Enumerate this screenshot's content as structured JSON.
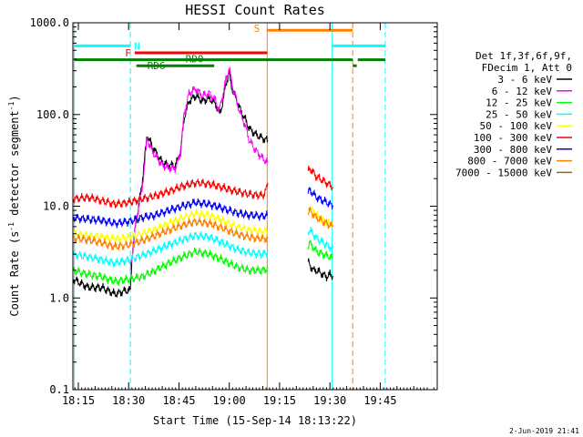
{
  "chart_data": {
    "type": "line",
    "title": "HESSI Count Rates",
    "xlabel": "Start Time (15-Sep-14 18:13:22)",
    "ylabel_parts": [
      "Count Rate (s",
      "-1",
      " detector segment",
      "-1",
      ")"
    ],
    "y_scale": "log",
    "xlim_minutes": [
      13.37,
      122.0
    ],
    "ylim": [
      0.1,
      1000
    ],
    "x_ticks": [
      {
        "minute": 15,
        "label": "18:15"
      },
      {
        "minute": 30,
        "label": "18:30"
      },
      {
        "minute": 45,
        "label": "18:45"
      },
      {
        "minute": 60,
        "label": "19:00"
      },
      {
        "minute": 75,
        "label": "19:15"
      },
      {
        "minute": 90,
        "label": "19:30"
      },
      {
        "minute": 105,
        "label": "19:45"
      }
    ],
    "y_ticks": [
      {
        "value": 0.1,
        "label": "0.1"
      },
      {
        "value": 1,
        "label": "1.0"
      },
      {
        "value": 10,
        "label": "10.0"
      },
      {
        "value": 100,
        "label": "100.0"
      },
      {
        "value": 1000,
        "label": "1000.0"
      }
    ],
    "legend": {
      "header": [
        "Det 1f,3f,6f,9f,",
        "FDecim 1, Att 0"
      ],
      "placement": "right"
    },
    "series": [
      {
        "name": "3 - 6 keV",
        "color": "#000000",
        "segments": [
          {
            "x": [
              13.5,
              18,
              22,
              26,
              29,
              30.5,
              31,
              32,
              33,
              34,
              35.5,
              37,
              40,
              42,
              44,
              45.5,
              46.5,
              48,
              50,
              52,
              54,
              56,
              57,
              58,
              59,
              60,
              61,
              62,
              63,
              64,
              65,
              66,
              68,
              70,
              71.5
            ],
            "y": [
              1.6,
              1.3,
              1.3,
              1.1,
              1.2,
              1.2,
              2.8,
              6,
              10,
              18,
              60,
              45,
              30,
              28,
              28,
              40,
              90,
              140,
              160,
              140,
              150,
              130,
              100,
              130,
              220,
              280,
              180,
              150,
              120,
              100,
              85,
              70,
              60,
              55,
              52
            ]
          },
          {
            "x": [
              83.5,
              84,
              85,
              86,
              87,
              88,
              89,
              90,
              91
            ],
            "y": [
              2.5,
              2.3,
              2.0,
              2.0,
              1.9,
              1.8,
              1.7,
              1.8,
              1.7
            ]
          }
        ]
      },
      {
        "name": "6 - 12 keV",
        "color": "#ff00ff",
        "segments": [
          {
            "x": [
              30.5,
              31,
              32,
              33,
              34,
              35.5,
              37,
              40,
              42,
              44,
              45.5,
              46.5,
              48,
              50,
              52,
              54,
              56,
              57,
              58,
              59,
              60,
              61,
              62,
              63,
              64,
              65,
              66,
              68,
              70,
              71.5
            ],
            "y": [
              2.0,
              2.8,
              6,
              10,
              15,
              55,
              40,
              28,
              26,
              26,
              38,
              100,
              170,
              190,
              160,
              170,
              140,
              110,
              160,
              240,
              320,
              200,
              150,
              110,
              90,
              70,
              52,
              40,
              33,
              30
            ]
          }
        ]
      },
      {
        "name": "12 - 25 keV",
        "color": "#00ff00",
        "segments": [
          {
            "x": [
              13.5,
              18,
              22,
              26,
              30,
              34,
              38,
              42,
              46,
              50,
              54,
              58,
              62,
              66,
              70,
              71.5
            ],
            "y": [
              2.0,
              1.8,
              1.7,
              1.5,
              1.6,
              1.7,
              2.0,
              2.4,
              2.8,
              3.2,
              3.0,
              2.6,
              2.2,
              2.0,
              2.0,
              2.1
            ]
          },
          {
            "x": [
              83.5,
              84,
              86,
              88,
              90,
              91
            ],
            "y": [
              3.6,
              4.0,
              3.2,
              3.0,
              2.8,
              2.7
            ]
          }
        ]
      },
      {
        "name": "25 - 50 keV",
        "color": "#00ffff",
        "segments": [
          {
            "x": [
              13.5,
              18,
              22,
              26,
              30,
              34,
              38,
              42,
              46,
              50,
              54,
              58,
              62,
              66,
              70,
              71.5
            ],
            "y": [
              3.0,
              2.8,
              2.6,
              2.4,
              2.6,
              2.9,
              3.3,
              3.8,
              4.3,
              4.8,
              4.6,
              4.0,
              3.4,
              3.1,
              3.0,
              3.1
            ]
          },
          {
            "x": [
              83.5,
              84,
              86,
              88,
              90,
              91
            ],
            "y": [
              5.2,
              5.5,
              4.5,
              4.0,
              3.6,
              3.5
            ]
          }
        ]
      },
      {
        "name": "50 - 100 keV",
        "color": "#ffff00",
        "segments": [
          {
            "x": [
              13.5,
              18,
              22,
              26,
              30,
              34,
              38,
              42,
              46,
              50,
              54,
              58,
              62,
              66,
              70,
              71.5
            ],
            "y": [
              5.0,
              4.8,
              4.6,
              4.4,
              4.6,
              5.0,
              5.6,
              6.5,
              7.5,
              8.3,
              8.0,
              7.0,
              6.0,
              5.5,
              5.3,
              5.4
            ]
          },
          {
            "x": [
              83.5,
              84,
              86,
              88,
              90,
              91
            ],
            "y": [
              9.0,
              9.5,
              8.0,
              7.0,
              6.5,
              6.3
            ]
          }
        ]
      },
      {
        "name": "100 - 300 keV",
        "color": "#ff0000",
        "segments": [
          {
            "x": [
              13.5,
              18,
              22,
              26,
              30,
              34,
              38,
              42,
              46,
              50,
              54,
              58,
              62,
              66,
              70,
              71,
              71.5
            ],
            "y": [
              12,
              12.5,
              11.5,
              10.5,
              11,
              12,
              13,
              14.5,
              16.5,
              18,
              17.5,
              16,
              14.5,
              13.5,
              13,
              15,
              18
            ]
          },
          {
            "x": [
              83.5,
              84,
              86,
              88,
              90,
              91
            ],
            "y": [
              24,
              26,
              21,
              19,
              17,
              16
            ]
          }
        ]
      },
      {
        "name": "300 - 800 keV",
        "color": "#0000ff",
        "segments": [
          {
            "x": [
              13.5,
              18,
              22,
              26,
              30,
              34,
              38,
              42,
              46,
              50,
              54,
              58,
              62,
              66,
              70,
              71.5
            ],
            "y": [
              7.5,
              7.2,
              7.0,
              6.5,
              6.8,
              7.5,
              8.0,
              9.0,
              10,
              11,
              10.5,
              9.5,
              8.5,
              8.0,
              7.8,
              8.0
            ]
          },
          {
            "x": [
              83.5,
              84,
              86,
              88,
              90,
              91
            ],
            "y": [
              14,
              15,
              12.5,
              11.5,
              10.5,
              10
            ]
          }
        ]
      },
      {
        "name": "800 - 7000 keV",
        "color": "#ff8000",
        "segments": [
          {
            "x": [
              13.5,
              18,
              22,
              26,
              30,
              34,
              38,
              42,
              46,
              50,
              54,
              58,
              62,
              66,
              70,
              71.5
            ],
            "y": [
              4.5,
              4.3,
              4.0,
              3.6,
              3.8,
              4.2,
              4.8,
              5.5,
              6.2,
              6.8,
              6.5,
              5.8,
              5.0,
              4.6,
              4.4,
              4.5
            ]
          },
          {
            "x": [
              83.5,
              84,
              86,
              88,
              90,
              91
            ],
            "y": [
              8.5,
              9.0,
              7.5,
              6.8,
              6.2,
              6.0
            ]
          }
        ]
      },
      {
        "name": "7000 - 15000 keV",
        "color": "#8b6914",
        "segments": []
      }
    ],
    "flag_bars": [
      {
        "label": "N",
        "color": "#00ffff",
        "x": [
          13.8,
          30.5
        ],
        "y": 560
      },
      {
        "label": "",
        "color": "#00ffff",
        "x": [
          90.7,
          106.5
        ],
        "y": 560
      },
      {
        "label": "S",
        "color": "#ff8000",
        "x": [
          71.3,
          96.8
        ],
        "y": 830
      },
      {
        "label": "F",
        "color": "#ff0000",
        "x": [
          31.8,
          71.3
        ],
        "y": 470
      },
      {
        "label": "RD0",
        "color": "#008000",
        "x": [
          13.8,
          96.8
        ],
        "y": 395
      },
      {
        "label": "",
        "color": "#008000",
        "x": [
          96.8,
          98.0
        ],
        "y": 340
      },
      {
        "label": "",
        "color": "#008000",
        "x": [
          98.3,
          106.5
        ],
        "y": 395
      },
      {
        "label": "RD6",
        "color": "#008000",
        "x": [
          32.3,
          55.5
        ],
        "y": 340
      }
    ],
    "vertical_markers": [
      {
        "x": 13.8,
        "color": "#00ffff",
        "dashed": false
      },
      {
        "x": 30.5,
        "color": "#00ffff",
        "dashed": true
      },
      {
        "x": 71.3,
        "color": "#ff8000",
        "dashed": false
      },
      {
        "x": 90.7,
        "color": "#00ffff",
        "dashed": false
      },
      {
        "x": 96.8,
        "color": "#ff8000",
        "dashed": true
      },
      {
        "x": 106.5,
        "color": "#00ffff",
        "dashed": true
      }
    ]
  },
  "footer": {
    "stamp": "2-Jun-2019 21:41"
  }
}
